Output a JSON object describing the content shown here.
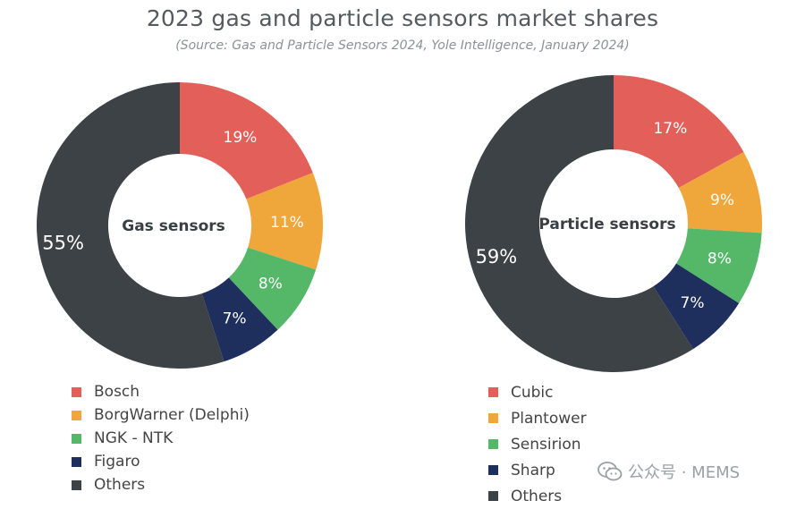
{
  "title": "2023 gas and particle sensors market shares",
  "subtitle": "(Source: Gas and Particle Sensors 2024, Yole Intelligence, January 2024)",
  "watermark": {
    "text": "公众号 · MEMS",
    "icon": "wechat-icon"
  },
  "chart_data": [
    {
      "type": "donut",
      "center_label": "Gas sensors",
      "categories": [
        "Bosch",
        "BorgWarner (Delphi)",
        "NGK - NTK",
        "Figaro",
        "Others"
      ],
      "values": [
        19,
        11,
        8,
        7,
        55
      ],
      "labels": [
        "19%",
        "11%",
        "8%",
        "7%",
        "55%"
      ],
      "colors": [
        "#e35f5a",
        "#efa63b",
        "#54b868",
        "#1e2f5e",
        "#3d4247"
      ],
      "legend_position": "bottom-left"
    },
    {
      "type": "donut",
      "center_label": "Particle sensors",
      "categories": [
        "Cubic",
        "Plantower",
        "Sensirion",
        "Sharp",
        "Others"
      ],
      "values": [
        17,
        9,
        8,
        7,
        59
      ],
      "labels": [
        "17%",
        "9%",
        "8%",
        "7%",
        "59%"
      ],
      "colors": [
        "#e35f5a",
        "#efa63b",
        "#54b868",
        "#1e2f5e",
        "#3d4247"
      ],
      "legend_position": "bottom-right"
    }
  ]
}
